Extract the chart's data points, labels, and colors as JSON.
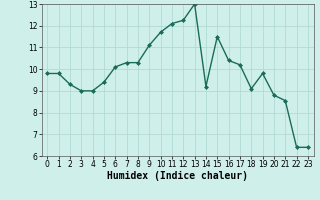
{
  "x": [
    0,
    1,
    2,
    3,
    4,
    5,
    6,
    7,
    8,
    9,
    10,
    11,
    12,
    13,
    14,
    15,
    16,
    17,
    18,
    19,
    20,
    21,
    22,
    23
  ],
  "y": [
    9.8,
    9.8,
    9.3,
    9.0,
    9.0,
    9.4,
    10.1,
    10.3,
    10.3,
    11.1,
    11.7,
    12.1,
    12.25,
    13.0,
    9.2,
    11.5,
    10.4,
    10.2,
    9.1,
    9.8,
    8.8,
    8.55,
    6.4,
    6.4
  ],
  "line_color": "#1a6b5a",
  "marker": "D",
  "marker_size": 2.0,
  "linewidth": 1.0,
  "xlabel": "Humidex (Indice chaleur)",
  "xlim": [
    -0.5,
    23.5
  ],
  "ylim": [
    6,
    13
  ],
  "yticks": [
    6,
    7,
    8,
    9,
    10,
    11,
    12,
    13
  ],
  "xticks": [
    0,
    1,
    2,
    3,
    4,
    5,
    6,
    7,
    8,
    9,
    10,
    11,
    12,
    13,
    14,
    15,
    16,
    17,
    18,
    19,
    20,
    21,
    22,
    23
  ],
  "bg_color": "#cff0ea",
  "grid_color": "#acd6cf",
  "tick_fontsize": 5.5,
  "xlabel_fontsize": 7.0
}
